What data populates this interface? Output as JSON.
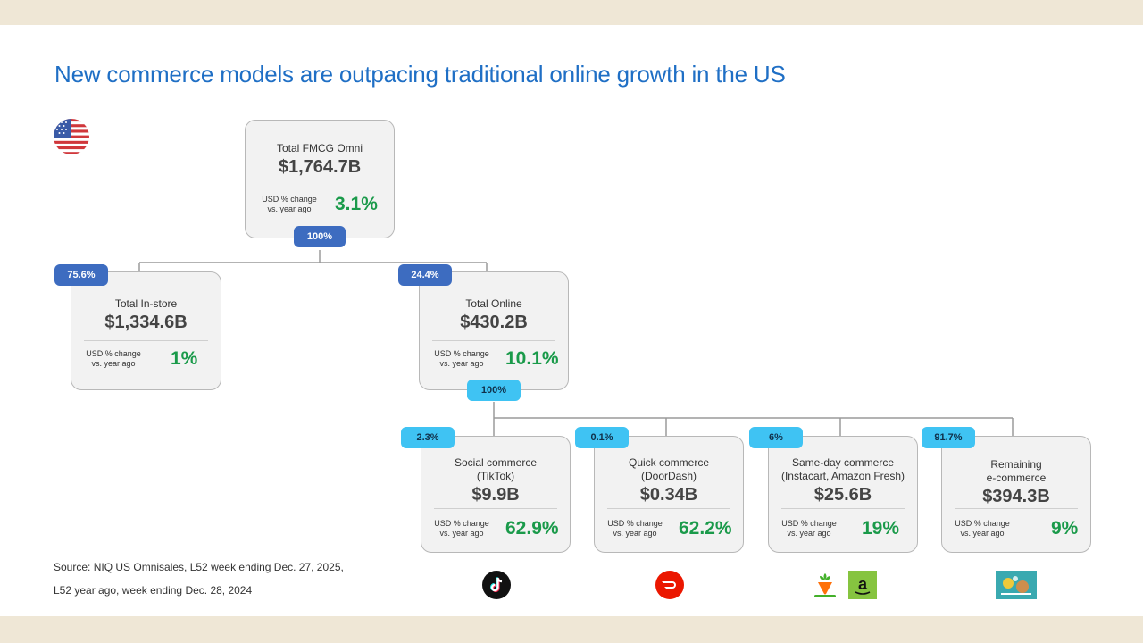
{
  "title": "New commerce models are outpacing traditional online growth in the US",
  "change_label_line1": "USD % change",
  "change_label_line2": "vs. year ago",
  "nodes": {
    "omni": {
      "label": "Total FMCG Omni",
      "value": "$1,764.7B",
      "change": "3.1%",
      "badge": "100%"
    },
    "instore": {
      "label": "Total In-store",
      "value": "$1,334.6B",
      "change": "1%",
      "badge": "75.6%"
    },
    "online": {
      "label": "Total Online",
      "value": "$430.2B",
      "change": "10.1%",
      "badge": "24.4%",
      "child_badge": "100%"
    },
    "social": {
      "label1": "Social commerce",
      "label2": "(TikTok)",
      "value": "$9.9B",
      "change": "62.9%",
      "badge": "2.3%"
    },
    "quick": {
      "label1": "Quick commerce",
      "label2": "(DoorDash)",
      "value": "$0.34B",
      "change": "62.2%",
      "badge": "0.1%"
    },
    "sameday": {
      "label1": "Same-day commerce",
      "label2": "(Instacart, Amazon Fresh)",
      "value": "$25.6B",
      "change": "19%",
      "badge": "6%"
    },
    "remaining": {
      "label1": "Remaining",
      "label2": "e-commerce",
      "value": "$394.3B",
      "change": "9%",
      "badge": "91.7%"
    }
  },
  "source_line1": "Source: NIQ US Omnisales, L52 week ending Dec. 27, 2025,",
  "source_line2": "L52 year ago, week ending Dec. 28, 2024",
  "logos": [
    "tiktok-logo",
    "doordash-logo",
    "instacart-logo",
    "amazon-logo",
    "ecommerce-logo"
  ],
  "colors": {
    "title": "#1f6fc5",
    "badge_dark": "#3d6cc0",
    "badge_light": "#3fc3f3",
    "growth": "#1a9a4a"
  }
}
